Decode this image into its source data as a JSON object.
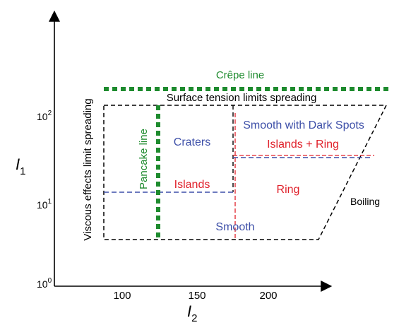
{
  "axes": {
    "y_label": "I",
    "y_label_sub": "1",
    "x_label": "I",
    "x_label_sub": "2",
    "y_ticks": [
      {
        "base": "10",
        "exp": "0"
      },
      {
        "base": "10",
        "exp": "1"
      },
      {
        "base": "10",
        "exp": "2"
      }
    ],
    "x_ticks": [
      "100",
      "150",
      "200"
    ]
  },
  "lines": {
    "crepe": "Crêpe line",
    "pancake": "Pancake line",
    "surface_tension": "Surface tension limits spreading",
    "viscous": "Viscous effects limit spreading",
    "boiling": "Boiling"
  },
  "regions": {
    "craters": "Craters",
    "islands": "Islands",
    "smooth": "Smooth",
    "smooth_dark_spots": "Smooth with Dark Spots",
    "islands_ring": "Islands + Ring",
    "ring": "Ring"
  },
  "colors": {
    "green": "#1e8b2e",
    "blue": "#3d4fa8",
    "red": "#e0202a",
    "black": "#000000"
  }
}
